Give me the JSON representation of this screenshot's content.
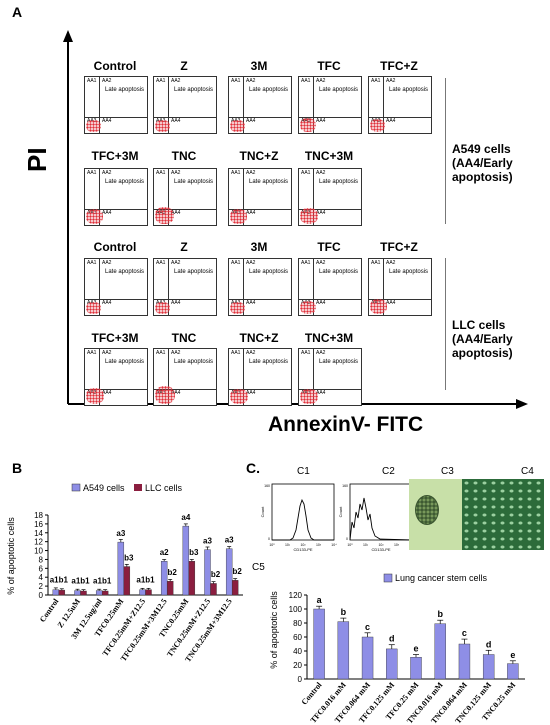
{
  "panelA": {
    "letter": "A",
    "y_axis_label": "PI",
    "x_axis_label": "AnnexinV- FITC",
    "quadrant_labels": {
      "aa1": "AA1",
      "aa2": "AA2",
      "aa3": "AA3",
      "aa4": "AA4",
      "late": "Late apoptosis"
    },
    "a549_row1": [
      "Control",
      "Z",
      "3M",
      "TFC",
      "TFC+Z"
    ],
    "a549_row2": [
      "TFC+3M",
      "TNC",
      "TNC+Z",
      "TNC+3M"
    ],
    "llc_row1": [
      "Control",
      "Z",
      "3M",
      "TFC",
      "TFC+Z"
    ],
    "llc_row2": [
      "TFC+3M",
      "TNC",
      "TNC+Z",
      "TNC+3M"
    ],
    "a549_label": {
      "line1": "A549 cells",
      "line2": "(AA4/Early",
      "line3": "apoptosis)"
    },
    "llc_label": {
      "line1": "LLC cells",
      "line2": "(AA4/Early",
      "line3": "apoptosis)"
    },
    "scatter_density": [
      0.45,
      0.45,
      0.45,
      0.6,
      0.5,
      0.7,
      0.9,
      0.7,
      0.8
    ],
    "llc_scatter_density": [
      0.45,
      0.45,
      0.45,
      0.55,
      0.7,
      0.8,
      1.0,
      0.75,
      0.75
    ],
    "dot_color": "#e0303a"
  },
  "panelB": {
    "letter": "B",
    "colors": {
      "a549": "#8e8ee6",
      "llc": "#8b1e3f"
    }
  },
  "panelC": {
    "letter": "C.",
    "sub": [
      "C1",
      "C2",
      "C3",
      "C4",
      "C5"
    ],
    "hist_xlabel": "CD133-PE",
    "hist_ylabel": "Count",
    "hist_ticks_x": [
      "10⁰",
      "10¹",
      "10²",
      "10³",
      "10⁴"
    ],
    "hist_ticks_y": [
      "0",
      "160"
    ],
    "colors": {
      "bar": "#8e8ee6",
      "c3_bg": "#c8e0a8",
      "c4_bg": "#2c6b3a"
    }
  },
  "chart_data": [
    {
      "type": "bar",
      "title": "",
      "xlabel": "",
      "ylabel": "% of apoptotic cells",
      "ylim": [
        0,
        18
      ],
      "yticks": [
        0,
        2,
        4,
        6,
        8,
        10,
        12,
        14,
        16,
        18
      ],
      "categories": [
        "Control",
        "Z 12.5uM",
        "3M 12.5ug/ml",
        "TFC0.25mM",
        "TFC0.25mM+Z12.5",
        "TFC0.25mM+3M12.5",
        "TNC0.25mM",
        "TNC0.25mM+Z12.5",
        "TNC0.25mM+3M12.5"
      ],
      "series": [
        {
          "name": "A549 cells",
          "values": [
            1.2,
            1.0,
            1.0,
            11.9,
            1.2,
            7.6,
            15.5,
            10.2,
            10.4
          ],
          "errors": [
            0.4,
            0.3,
            0.3,
            0.6,
            0.3,
            0.4,
            0.5,
            0.6,
            0.5
          ]
        },
        {
          "name": "LLC cells",
          "values": [
            1.1,
            0.9,
            0.9,
            6.4,
            1.2,
            3.1,
            7.6,
            2.6,
            3.3
          ],
          "errors": [
            0.3,
            0.3,
            0.3,
            0.5,
            0.3,
            0.4,
            0.4,
            0.4,
            0.4
          ]
        }
      ],
      "annotations": [
        "a1b1",
        "a1b1",
        "a1b1",
        "a3",
        "b3",
        "a1b1",
        "a2",
        "b2",
        "a4",
        "b3",
        "a3",
        "b2",
        "a3",
        "b2"
      ],
      "legend": "top"
    },
    {
      "type": "bar",
      "title": "",
      "xlabel": "",
      "ylabel": "% of apoptotic cells",
      "ylim": [
        0,
        120
      ],
      "yticks": [
        0,
        20,
        40,
        60,
        80,
        100,
        120
      ],
      "categories": [
        "Control",
        "TFC0.016 mM",
        "TFC0.064 mM",
        "TFC0.125 mM",
        "TFC0.25 mM",
        "TNC0.016 mM",
        "TNC0.064 mM",
        "TNC0.125 mM",
        "TNC0.25 mM"
      ],
      "series": [
        {
          "name": "Lung cancer stem cells",
          "values": [
            100,
            82,
            60,
            43,
            31,
            79,
            50,
            35,
            22
          ],
          "errors": [
            4,
            5,
            6,
            6,
            4,
            5,
            7,
            6,
            4
          ]
        }
      ],
      "annotations": [
        "a",
        "b",
        "c",
        "d",
        "e",
        "b",
        "c",
        "d",
        "e"
      ],
      "legend": "top"
    }
  ]
}
